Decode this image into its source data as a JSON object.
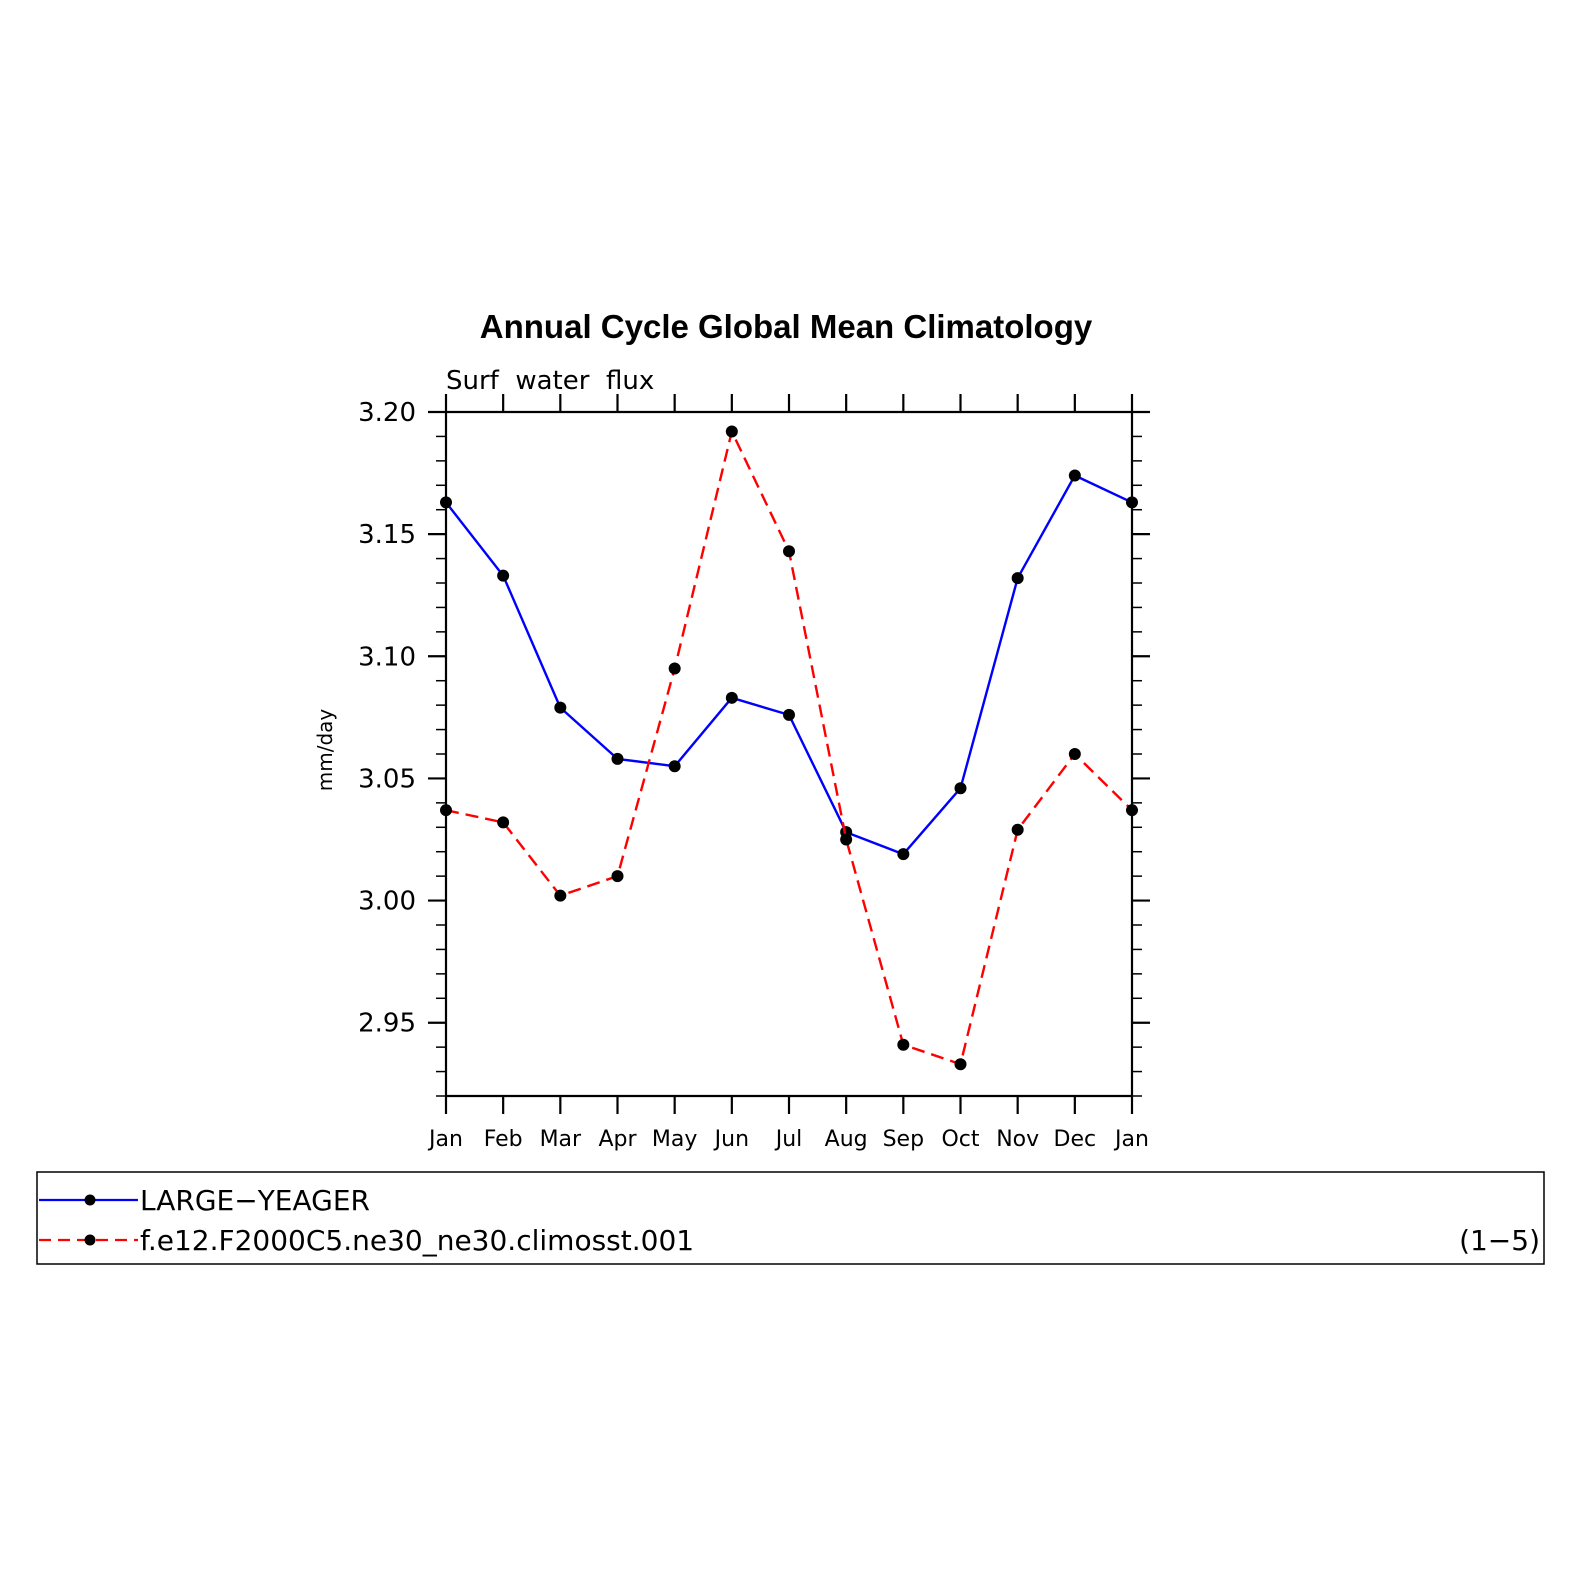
{
  "chart_data": {
    "type": "line",
    "title": "Annual Cycle Global Mean Climatology",
    "subtitle": "Surf  water  flux",
    "ylabel": "mm/day",
    "xlabel": "",
    "categories": [
      "Jan",
      "Feb",
      "Mar",
      "Apr",
      "May",
      "Jun",
      "Jul",
      "Aug",
      "Sep",
      "Oct",
      "Nov",
      "Dec",
      "Jan"
    ],
    "ylim": [
      2.92,
      3.2
    ],
    "yticks": [
      "3.20",
      "3.15",
      "3.10",
      "3.05",
      "3.00",
      "2.95"
    ],
    "ytick_values": [
      3.2,
      3.15,
      3.1,
      3.05,
      3.0,
      2.95
    ],
    "grid": false,
    "legend_position": "bottom",
    "legend_note": "(1−5)",
    "series": [
      {
        "name": "LARGE−YEAGER",
        "color": "#0000ff",
        "dash": "solid",
        "values": [
          3.163,
          3.133,
          3.079,
          3.058,
          3.055,
          3.083,
          3.076,
          3.028,
          3.019,
          3.046,
          3.132,
          3.174,
          3.163
        ]
      },
      {
        "name": "f.e12.F2000C5.ne30_ne30.climosst.001",
        "color": "#ff0000",
        "dash": "dashed",
        "values": [
          3.037,
          3.032,
          3.002,
          3.01,
          3.095,
          3.192,
          3.143,
          3.025,
          2.941,
          2.933,
          3.029,
          3.06,
          3.037
        ]
      }
    ]
  }
}
